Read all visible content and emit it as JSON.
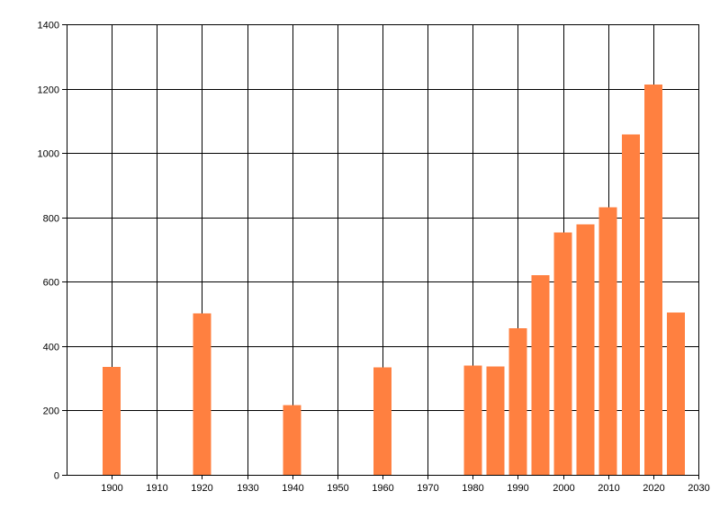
{
  "chart_data": {
    "type": "bar",
    "x": [
      1900,
      1920,
      1940,
      1960,
      1980,
      1985,
      1990,
      1995,
      2000,
      2005,
      2010,
      2015,
      2020,
      2025
    ],
    "values": [
      336,
      501,
      216,
      334,
      339,
      337,
      456,
      621,
      753,
      778,
      832,
      1057,
      1213,
      504
    ],
    "xlim": [
      1890,
      2030
    ],
    "ylim": [
      0,
      1400
    ],
    "x_ticks": [
      1900,
      1910,
      1920,
      1930,
      1940,
      1950,
      1960,
      1970,
      1980,
      1990,
      2000,
      2010,
      2020,
      2030
    ],
    "y_ticks": [
      0,
      200,
      400,
      600,
      800,
      1000,
      1200,
      1400
    ],
    "title": "",
    "xlabel": "",
    "ylabel": "",
    "grid": true,
    "bar_color": "#ff8040"
  }
}
